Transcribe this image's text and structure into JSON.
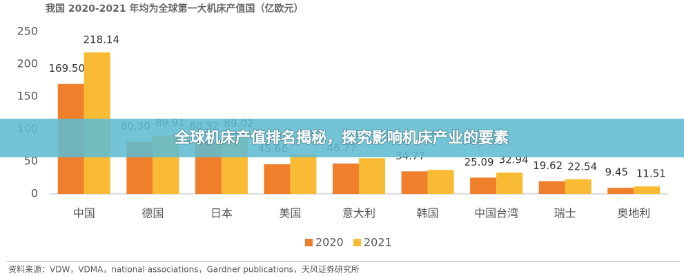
{
  "chart_data": {
    "type": "bar",
    "title": "我国 2020-2021 年均为全球第一大机床产值国（亿欧元）",
    "categories": [
      "中国",
      "德国",
      "日本",
      "美国",
      "意大利",
      "韩国",
      "中国台湾",
      "瑞士",
      "奥地利"
    ],
    "series": [
      {
        "name": "2020",
        "color": "#f07f2c",
        "values": [
          169.5,
          80.3,
          80.32,
          45.66,
          46.77,
          34.77,
          25.09,
          19.62,
          9.45
        ],
        "value_labels": [
          "169.50",
          "80.30",
          "80.32",
          "45.66",
          "46.77",
          "34.77",
          "25.09",
          "19.62",
          "9.45"
        ]
      },
      {
        "name": "2021",
        "color": "#f8bb33",
        "values": [
          218.14,
          89.91,
          89.02,
          61,
          55,
          37,
          32.94,
          22.54,
          11.51
        ],
        "value_labels": [
          "218.14",
          "89.91",
          "89.02",
          null,
          null,
          null,
          "32.94",
          "22.54",
          "11.51"
        ]
      }
    ],
    "ylim": [
      0,
      250
    ],
    "yticks": [
      0,
      50,
      100,
      150,
      200,
      250
    ],
    "grid": false,
    "legend": "bottom",
    "source": "资料来源：VDW，VDMA，national associations，Gardner publications，天风证券研究所"
  },
  "banner": "全球机床产值排名揭秘，探究影响机床产业的要素"
}
